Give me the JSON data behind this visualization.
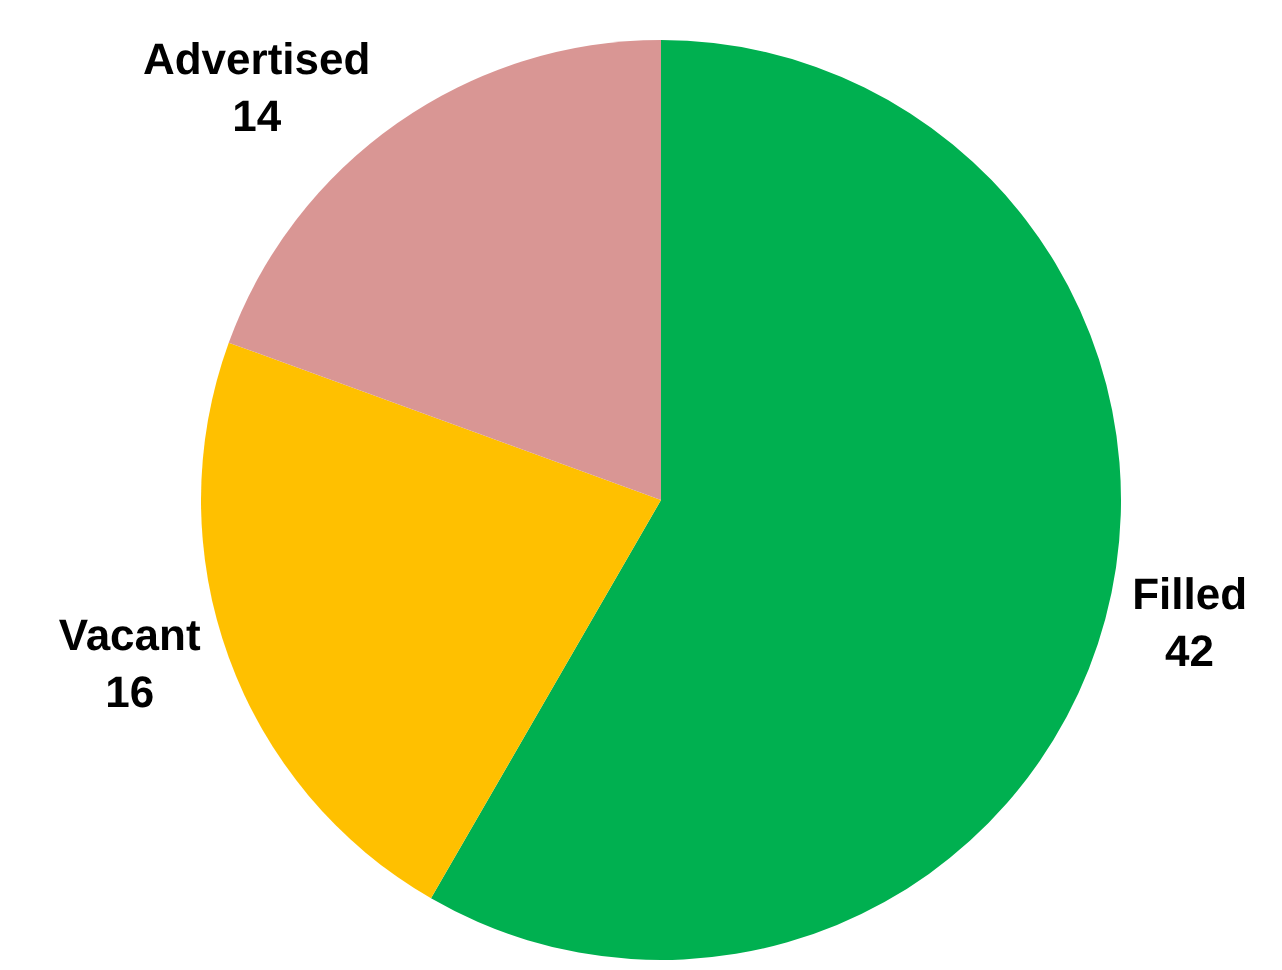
{
  "chart_data": {
    "type": "pie",
    "categories": [
      "Filled",
      "Vacant",
      "Advertised"
    ],
    "values": [
      42,
      16,
      14
    ],
    "colors": [
      "#00b050",
      "#ffc000",
      "#d99694"
    ],
    "data_labels": true,
    "legend": false
  }
}
